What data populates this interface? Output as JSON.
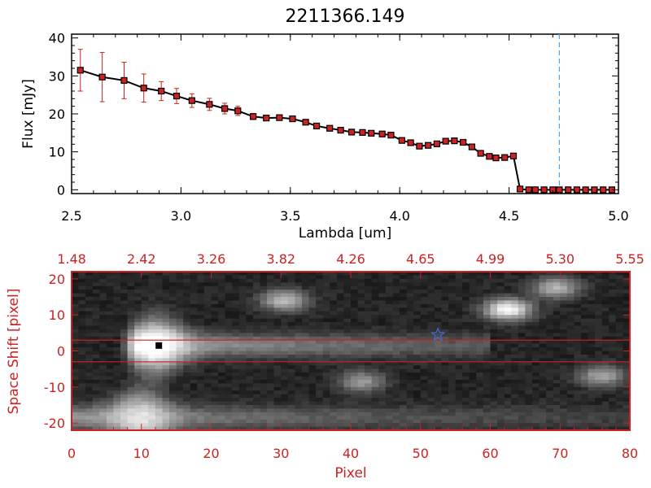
{
  "chart_data": [
    {
      "type": "line",
      "title": "2211366.149",
      "xlabel": "Lambda [um]",
      "ylabel": "Flux [mJy]",
      "xlim": [
        2.5,
        5.0
      ],
      "ylim": [
        -1,
        41
      ],
      "x_ticks": [
        "2.5",
        "3.0",
        "3.5",
        "4.0",
        "4.5",
        "5.0"
      ],
      "y_ticks": [
        "0",
        "10",
        "20",
        "30",
        "40"
      ],
      "grid": false,
      "line_color": "#000000",
      "marker_color": "#cc2222",
      "errorbar_color": "#cc2222",
      "series": [
        {
          "x": [
            2.54,
            2.64,
            2.74,
            2.83,
            2.91,
            2.98,
            3.05,
            3.13,
            3.2,
            3.26,
            3.33,
            3.39,
            3.45,
            3.51,
            3.57,
            3.62,
            3.68,
            3.73,
            3.78,
            3.83,
            3.87,
            3.92,
            3.96,
            4.01,
            4.05,
            4.09,
            4.13,
            4.17,
            4.21,
            4.25,
            4.29,
            4.33,
            4.37,
            4.41,
            4.44,
            4.48,
            4.52,
            4.55,
            4.59,
            4.62,
            4.66,
            4.7,
            4.73,
            4.77,
            4.81,
            4.85,
            4.89,
            4.93,
            4.97
          ],
          "y": [
            31.5,
            29.7,
            28.8,
            26.8,
            26.0,
            24.7,
            23.5,
            22.5,
            21.4,
            20.8,
            19.3,
            18.9,
            19.0,
            18.7,
            17.8,
            16.8,
            16.2,
            15.7,
            15.2,
            15.1,
            14.9,
            14.7,
            14.4,
            13.0,
            12.4,
            11.5,
            11.7,
            12.1,
            12.8,
            12.9,
            12.5,
            11.3,
            9.6,
            8.8,
            8.4,
            8.5,
            8.9,
            0.2,
            0.0,
            0.0,
            0.0,
            0.0,
            0.0,
            0.0,
            0.0,
            0.0,
            0.0,
            0.0,
            0.0
          ],
          "yerr": [
            5.5,
            6.5,
            4.8,
            3.7,
            2.5,
            2.0,
            1.8,
            1.6,
            1.4,
            1.2,
            0.8,
            0.6,
            0.5,
            0.5,
            0.5,
            0.4,
            0.4,
            0.4,
            0.3,
            0.3,
            0.3,
            0.3,
            0.3,
            0.3,
            0.3,
            0.3,
            0.3,
            0.3,
            0.3,
            0.3,
            0.3,
            0.3,
            0.3,
            0.3,
            0.3,
            0.3,
            0.3,
            0.3,
            0.3,
            0.3,
            0.3,
            0.3,
            0.3,
            0.3,
            0.3,
            0.3,
            0.3,
            0.3,
            0.3
          ]
        }
      ],
      "vline": {
        "x": 4.73,
        "color": "#4aa8e8"
      },
      "zero_line_color": "#cc2222"
    },
    {
      "type": "heatmap",
      "xlabel": "Pixel",
      "ylabel": "Space Shift [pixel]",
      "xlim": [
        0,
        80
      ],
      "ylim": [
        -22,
        22
      ],
      "x_ticks": [
        "0",
        "10",
        "20",
        "30",
        "40",
        "50",
        "60",
        "70",
        "80"
      ],
      "y_ticks": [
        "-20",
        "-10",
        "0",
        "10",
        "20"
      ],
      "top_tick_labels": [
        "1.48",
        "2.42",
        "3.26",
        "3.82",
        "4.26",
        "4.65",
        "4.99",
        "5.30",
        "5.55"
      ],
      "axis_color": "#cc2222",
      "colormap": "grayscale",
      "extraction_lines_y": [
        3,
        -3
      ],
      "extraction_line_color": "#cc2222",
      "source_marker": {
        "x": 12.5,
        "y": 1.5,
        "shape": "square",
        "color": "#000000"
      },
      "star_marker": {
        "x": 52.5,
        "y": 4.5,
        "shape": "star-icon",
        "color": "#3a6fd8"
      },
      "features": [
        {
          "type": "trace",
          "x_start": 9,
          "x_end": 58,
          "y": 1.5,
          "peak_x": 12,
          "intensity": 1.0
        },
        {
          "type": "trace",
          "x_start": 0,
          "x_end": 80,
          "y": -18.5,
          "peak_x": 10,
          "intensity": 0.75
        },
        {
          "type": "blob",
          "x": 30.5,
          "y": 14,
          "intensity": 0.6
        },
        {
          "type": "blob",
          "x": 62.5,
          "y": 11.5,
          "intensity": 0.9
        },
        {
          "type": "blob",
          "x": 69.5,
          "y": 17.5,
          "intensity": 0.55
        },
        {
          "type": "blob",
          "x": 41.5,
          "y": -8.5,
          "intensity": 0.45
        },
        {
          "type": "blob",
          "x": 76,
          "y": -7,
          "intensity": 0.5
        }
      ]
    }
  ]
}
